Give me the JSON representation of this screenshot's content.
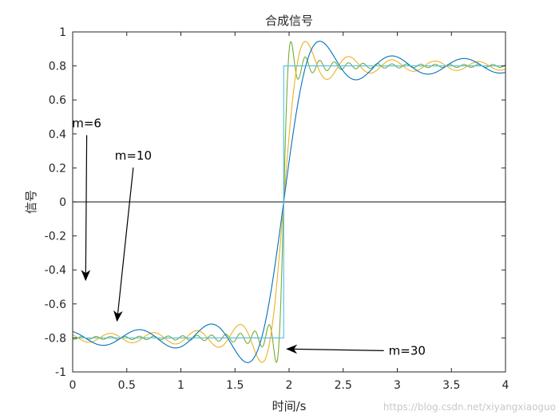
{
  "chart_data": {
    "type": "line",
    "title": "合成信号",
    "xlabel": "时间/s",
    "ylabel": "信号",
    "xlim": [
      0,
      4
    ],
    "ylim": [
      -1,
      1
    ],
    "xticks": [
      0,
      0.5,
      1,
      1.5,
      2,
      2.5,
      3,
      3.5,
      4
    ],
    "xtick_labels": [
      "0",
      "0.5",
      "1",
      "1.5",
      "2",
      "2.5",
      "3",
      "3.5",
      "4"
    ],
    "yticks": [
      -1,
      -0.8,
      -0.6,
      -0.4,
      -0.2,
      0,
      0.2,
      0.4,
      0.6,
      0.8,
      1
    ],
    "ytick_labels": [
      "-1",
      "-0.8",
      "-0.6",
      "-0.4",
      "-0.2",
      "0",
      "0.2",
      "0.4",
      "0.6",
      "0.8",
      "1"
    ],
    "grid": false,
    "square_wave": {
      "amplitude": 0.8,
      "period": 8,
      "transition_x": 1.95
    },
    "series": [
      {
        "terms": 6,
        "color": "#0072BD"
      },
      {
        "terms": 10,
        "color": "#EDB120"
      },
      {
        "terms": 30,
        "color": "#77AC30"
      },
      {
        "terms": 0,
        "color": "#4DBEEE",
        "kind": "ideal-square"
      },
      {
        "terms": 0,
        "color": "#404040",
        "kind": "zero-line"
      }
    ],
    "annotations": [
      {
        "text": "m=6",
        "label_x": 0.13,
        "label_y": 0.43,
        "arrow_to": [
          0.12,
          -0.46
        ]
      },
      {
        "text": "m=10",
        "label_x": 0.56,
        "label_y": 0.24,
        "arrow_to": [
          0.41,
          -0.7
        ]
      },
      {
        "text": "m=30",
        "label_x": 2.92,
        "label_y": -0.875,
        "arrow_to": [
          1.98,
          -0.865
        ]
      }
    ]
  },
  "watermark": "https://blog.csdn.net/xiyangxiaoguo"
}
